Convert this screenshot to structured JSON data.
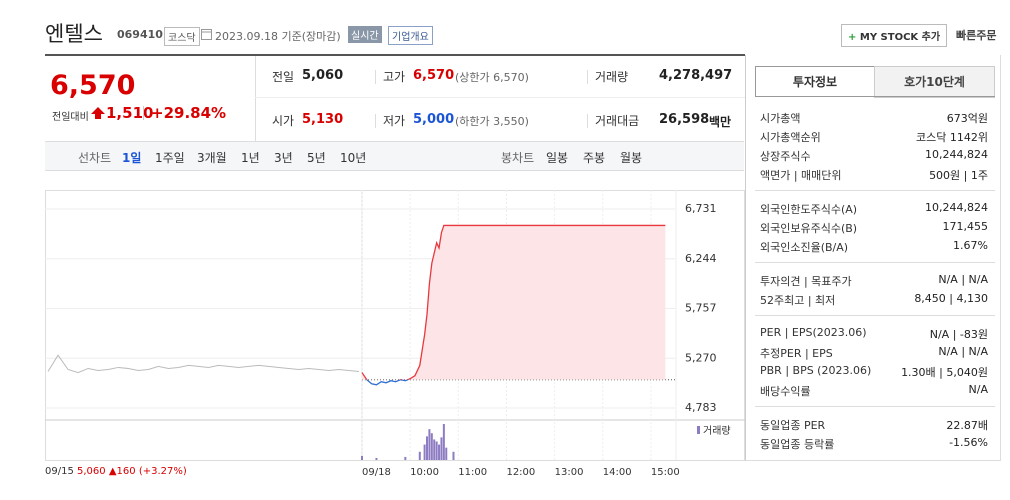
{
  "header": {
    "name": "엔텔스",
    "code": "069410",
    "market": "코스닥",
    "date": "2023.09.18 기준(장마감)",
    "realtime": "실시간",
    "overview": "기업개요",
    "mystock": "MY STOCK 추가",
    "quick_order": "빠른주문"
  },
  "quote": {
    "price": "6,570",
    "change_label": "전일대비",
    "change": "1,510",
    "rate": "+29.84%",
    "summary": [
      [
        {
          "label": "전일",
          "value": "5,060"
        },
        {
          "label": "고가",
          "value": "6,570",
          "note": "(상한가 6,570)"
        },
        {
          "label": "거래량",
          "value": "4,278,497"
        }
      ],
      [
        {
          "label": "시가",
          "value": "5,130"
        },
        {
          "label": "저가",
          "value": "5,000",
          "note": "(하한가 3,550)"
        },
        {
          "label": "거래대금",
          "value": "26,598",
          "unit": "백만"
        }
      ]
    ]
  },
  "tabs": {
    "line_label": "선차트",
    "periods": [
      "1일",
      "1주일",
      "3개월",
      "1년",
      "3년",
      "5년",
      "10년"
    ],
    "candle_label": "봉차트",
    "candles": [
      "일봉",
      "주봉",
      "월봉"
    ]
  },
  "chart": {
    "type": "line",
    "ylim": [
      4783,
      6731
    ],
    "yticks": [
      {
        "value": 6731,
        "label": "6,731"
      },
      {
        "value": 6244,
        "label": "6,244"
      },
      {
        "value": 5757,
        "label": "5,757"
      },
      {
        "value": 5270,
        "label": "5,270"
      },
      {
        "value": 4783,
        "label": "4,783"
      }
    ],
    "xlim": [
      9,
      15.5
    ],
    "xticks": [
      {
        "value": 9,
        "label": "09/18"
      },
      {
        "value": 10,
        "label": "10:00"
      },
      {
        "value": 11,
        "label": "11:00"
      },
      {
        "value": 12,
        "label": "12:00"
      },
      {
        "value": 13,
        "label": "13:00"
      },
      {
        "value": 14,
        "label": "14:00"
      },
      {
        "value": 15,
        "label": "15:00"
      }
    ],
    "baseline": 5060,
    "previous_day": {
      "color": "#bbbbbb",
      "values": [
        5140,
        5300,
        5160,
        5130,
        5170,
        5150,
        5160,
        5180,
        5170,
        5150,
        5160,
        5190,
        5170,
        5180,
        5200,
        5190,
        5180,
        5200,
        5190,
        5180,
        5190,
        5200,
        5190,
        5180,
        5170,
        5160,
        5170,
        5160,
        5150,
        5160,
        5150,
        5140
      ]
    },
    "series": {
      "color_up": "#e8383d",
      "color_down": "#2f6fd4",
      "fill": "#fde4e6",
      "x": [
        9.0,
        9.1,
        9.2,
        9.3,
        9.4,
        9.5,
        9.6,
        9.7,
        9.8,
        9.9,
        10.0,
        10.1,
        10.2,
        10.25,
        10.3,
        10.35,
        10.4,
        10.45,
        10.5,
        10.55,
        10.6,
        10.65,
        10.7,
        15.3
      ],
      "values": [
        5130,
        5060,
        5020,
        5010,
        5040,
        5030,
        5050,
        5040,
        5060,
        5050,
        5070,
        5100,
        5200,
        5350,
        5500,
        5700,
        6000,
        6200,
        6300,
        6400,
        6350,
        6500,
        6570,
        6570
      ]
    },
    "volume": {
      "name": "거래량",
      "color": "#8e7cc3",
      "x": [
        9.0,
        9.3,
        9.9,
        10.2,
        10.3,
        10.35,
        10.4,
        10.45,
        10.5,
        10.55,
        10.6,
        10.65,
        10.7,
        10.75,
        10.9
      ],
      "values": [
        40000,
        20000,
        30000,
        80000,
        150000,
        230000,
        300000,
        260000,
        200000,
        180000,
        150000,
        220000,
        350000,
        120000,
        80000
      ]
    }
  },
  "footer": {
    "date": "09/15",
    "close": "5,060",
    "change": "160",
    "rate": "(+3.27%)"
  },
  "panel": {
    "tabs": [
      "투자정보",
      "호가10단계"
    ],
    "groups": [
      [
        {
          "label": "시가총액",
          "value": "673억원"
        },
        {
          "label": "시가총액순위",
          "value": "코스닥 1142위"
        },
        {
          "label": "상장주식수",
          "value": "10,244,824"
        },
        {
          "label": "액면가 | 매매단위",
          "value": "500원 | 1주"
        }
      ],
      [
        {
          "label": "외국인한도주식수(A)",
          "value": "10,244,824"
        },
        {
          "label": "외국인보유주식수(B)",
          "value": "171,455"
        },
        {
          "label": "외국인소진율(B/A)",
          "value": "1.67%"
        }
      ],
      [
        {
          "label": "투자의견 | 목표주가",
          "value": "N/A | N/A"
        },
        {
          "label": "52주최고 | 최저",
          "value": "8,450 | 4,130"
        }
      ],
      [
        {
          "label": "PER | EPS(2023.06)",
          "value": "N/A | -83원"
        },
        {
          "label": "추정PER | EPS",
          "value": "N/A | N/A"
        },
        {
          "label": "PBR | BPS (2023.06)",
          "value": "1.30배 | 5,040원"
        },
        {
          "label": "배당수익률",
          "value": "N/A"
        }
      ],
      [
        {
          "label": "동일업종 PER",
          "value": "22.87배"
        },
        {
          "label": "동일업종 등락률",
          "value": "-1.56%"
        }
      ]
    ]
  }
}
